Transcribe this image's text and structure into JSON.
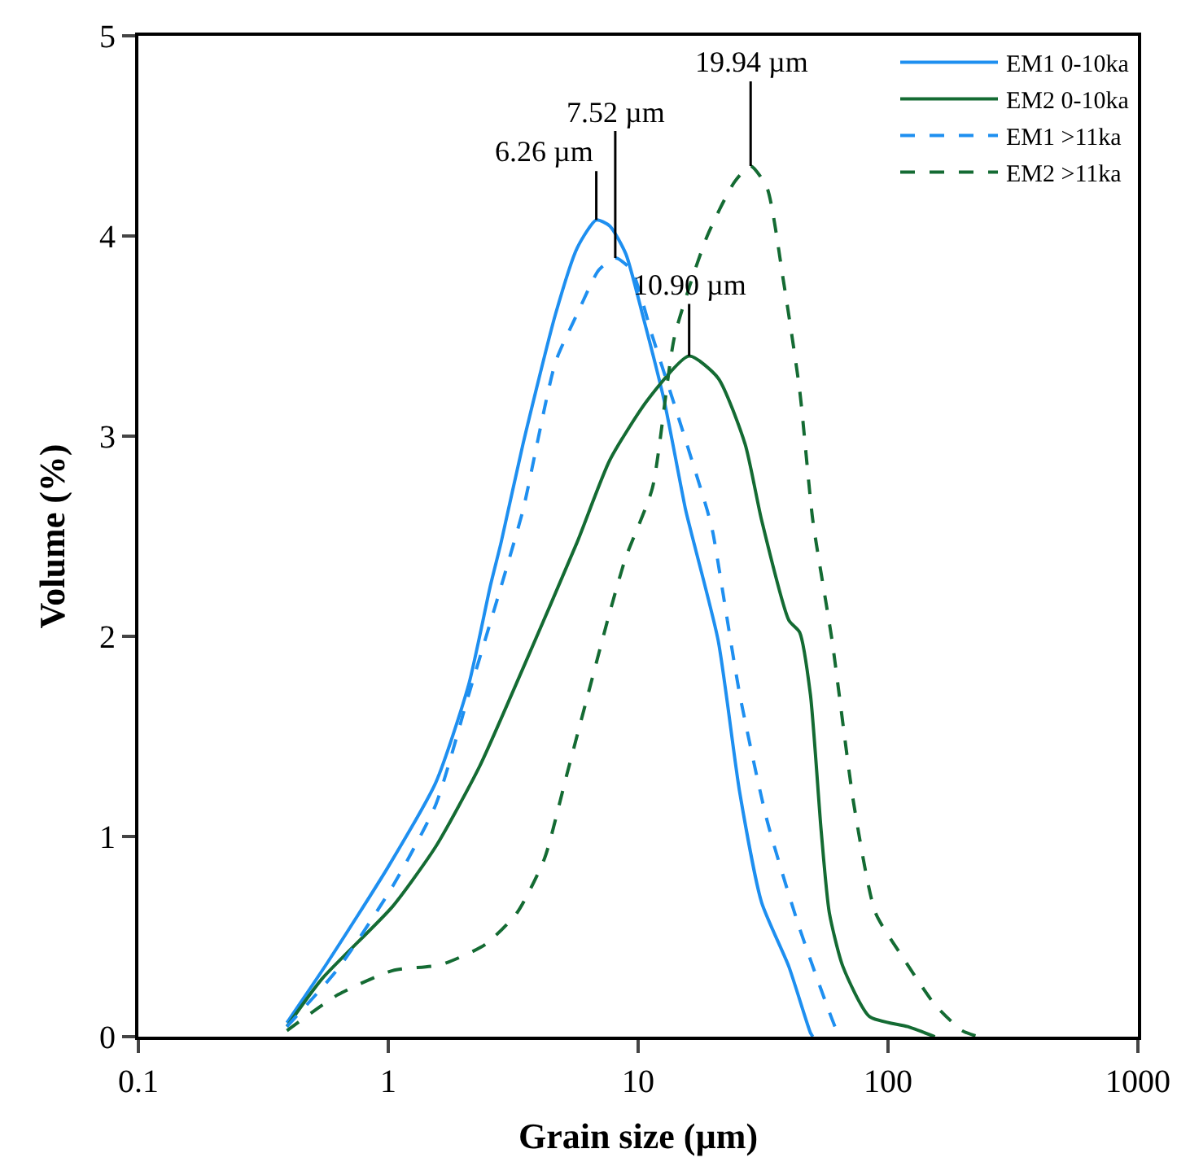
{
  "chart_data": {
    "type": "line",
    "xlabel": "Grain size (µm)",
    "ylabel": "Volume (%)",
    "log": "x",
    "xlim": [
      0.1,
      1000
    ],
    "xticks": [
      0.1,
      1,
      10,
      100,
      1000
    ],
    "ylim": [
      0,
      5
    ],
    "yticks": [
      0,
      1,
      2,
      3,
      4,
      5
    ],
    "legend": "top right",
    "marker": "none",
    "series": [
      {
        "name": "EM1 0-10ka",
        "color": "#1e8ff0",
        "line_style": "solid",
        "x": [
          0.393,
          0.571,
          0.99,
          1.55,
          2.1,
          2.56,
          2.83,
          3.46,
          4.67,
          5.7,
          6.8,
          7.7,
          8.93,
          10.4,
          12.7,
          15.5,
          16.3,
          20.9,
          25.5,
          31.2,
          40.1,
          48.9,
          50
        ],
        "values": [
          0.07,
          0.37,
          0.84,
          1.27,
          1.76,
          2.25,
          2.47,
          2.96,
          3.61,
          3.94,
          4.08,
          4.05,
          3.91,
          3.61,
          3.18,
          2.63,
          2.52,
          1.98,
          1.22,
          0.67,
          0.35,
          0.02,
          0
        ]
      },
      {
        "name": "EM2 0-10ka",
        "color": "#146b33",
        "line_style": "solid",
        "x": [
          0.393,
          0.544,
          1.04,
          1.55,
          2.32,
          3.46,
          5.7,
          7.7,
          10.9,
          16,
          20.9,
          26.8,
          31.2,
          40.1,
          44.3,
          48.9,
          54,
          58.2,
          66,
          84.4,
          120,
          154
        ],
        "values": [
          0.05,
          0.29,
          0.65,
          0.95,
          1.35,
          1.84,
          2.47,
          2.88,
          3.18,
          3.4,
          3.29,
          2.96,
          2.58,
          2.08,
          2.02,
          1.71,
          1.03,
          0.62,
          0.35,
          0.1,
          0.05,
          0
        ]
      },
      {
        "name": "EM1 >11ka",
        "color": "#1e8ff0",
        "line_style": "dashed",
        "x": [
          0.393,
          0.63,
          1.04,
          1.55,
          2.1,
          2.83,
          3.46,
          4.67,
          5.7,
          6.96,
          8.1,
          9.4,
          11.4,
          14.7,
          18.9,
          19.9,
          25.5,
          32.8,
          44.3,
          62.9,
          65
        ],
        "values": [
          0.05,
          0.34,
          0.75,
          1.16,
          1.71,
          2.25,
          2.63,
          3.37,
          3.61,
          3.83,
          3.89,
          3.83,
          3.5,
          3.07,
          2.63,
          2.52,
          1.71,
          1.08,
          0.54,
          0.02,
          0
        ]
      },
      {
        "name": "EM2 >11ka",
        "color": "#146b33",
        "line_style": "dashed",
        "x": [
          0.393,
          0.63,
          1.04,
          1.63,
          2.44,
          3.28,
          4.22,
          5.16,
          6.3,
          7.7,
          8.9,
          11.4,
          14,
          18.9,
          24.3,
          28.2,
          32.8,
          38.1,
          44.3,
          50,
          59.7,
          73,
          89,
          114,
          154,
          198,
          230
        ],
        "values": [
          0.03,
          0.21,
          0.33,
          0.36,
          0.46,
          0.62,
          0.89,
          1.3,
          1.71,
          2.12,
          2.39,
          2.74,
          3.5,
          4.0,
          4.27,
          4.35,
          4.24,
          3.78,
          3.23,
          2.58,
          1.98,
          1.16,
          0.62,
          0.4,
          0.16,
          0.03,
          0
        ]
      }
    ],
    "annotations": [
      {
        "text": "6.26 µm",
        "x": 6.8,
        "y": 4.08
      },
      {
        "text": "7.52 µm",
        "x": 8.1,
        "y": 3.89
      },
      {
        "text": "10.90 µm",
        "x": 16,
        "y": 3.4
      },
      {
        "text": "19.94 µm",
        "x": 28.2,
        "y": 4.35
      }
    ]
  }
}
